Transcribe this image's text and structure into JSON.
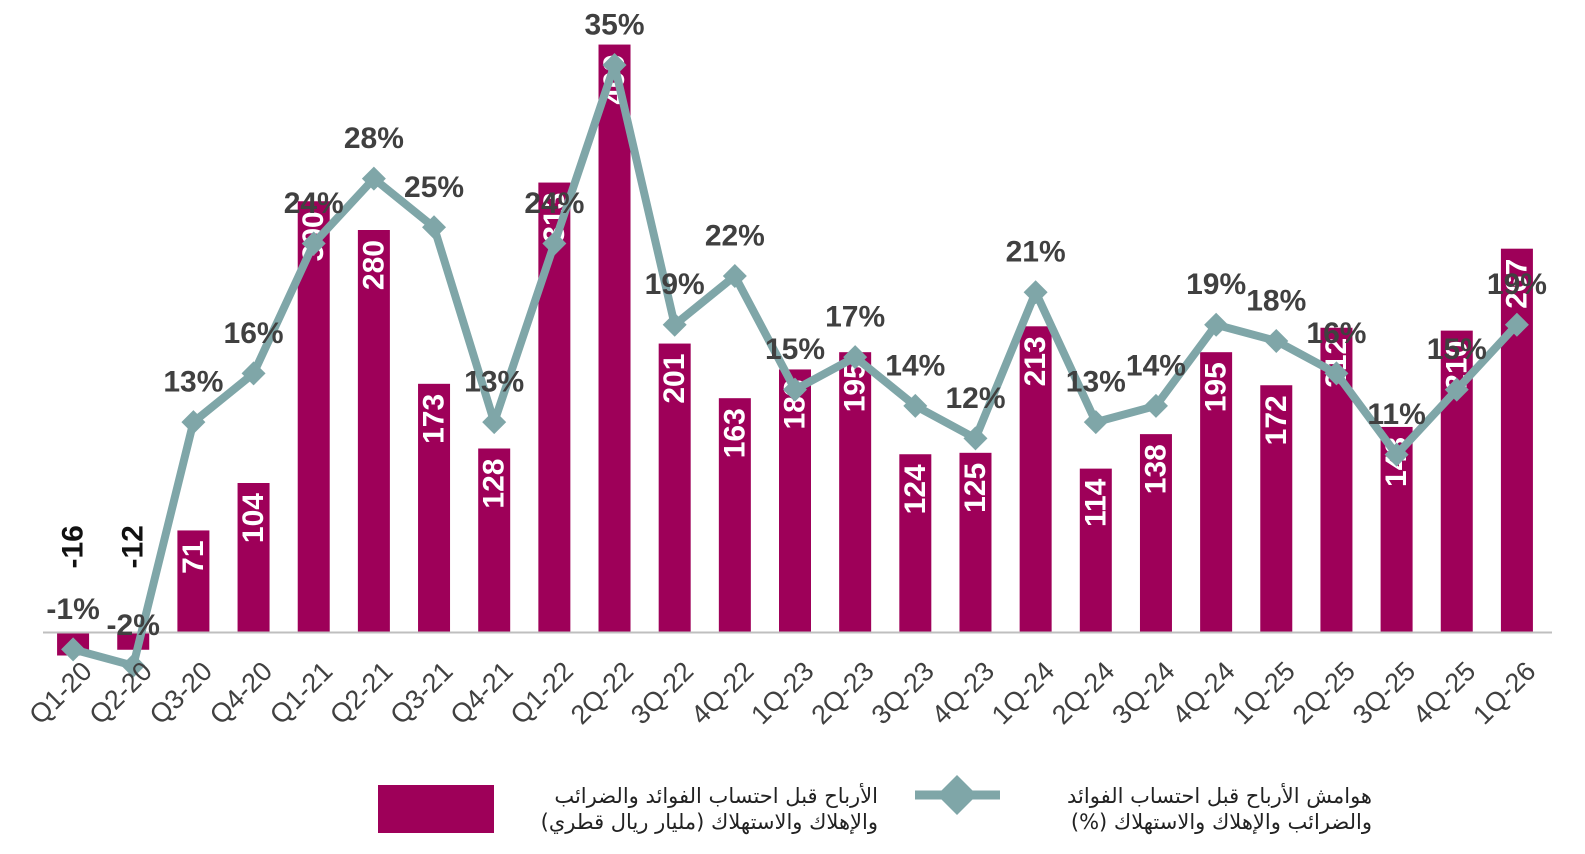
{
  "chart_data": {
    "type": "bar-line",
    "categories": [
      "Q1-20",
      "Q2-20",
      "Q3-20",
      "Q4-20",
      "Q1-21",
      "Q2-21",
      "Q3-21",
      "Q4-21",
      "Q1-22",
      "2Q-22",
      "3Q-22",
      "4Q-22",
      "1Q-23",
      "2Q-23",
      "3Q-23",
      "4Q-23",
      "1Q-24",
      "2Q-24",
      "3Q-24",
      "4Q-24",
      "1Q-25",
      "2Q-25",
      "3Q-25",
      "4Q-25",
      "1Q-26"
    ],
    "series": [
      {
        "name": "الأرباح قبل احتساب الفوائد والضرائب والإهلاك والاستهلاك (مليار ريال قطري)",
        "type": "bar",
        "color": "#9e0059",
        "values": [
          -16,
          -12,
          71,
          104,
          300,
          280,
          173,
          128,
          313,
          409,
          201,
          163,
          183,
          195,
          124,
          125,
          213,
          114,
          138,
          195,
          172,
          212,
          143,
          210,
          267
        ]
      },
      {
        "name": "هوامش الأرباح قبل احتساب الفوائد والضرائب والإهلاك والاستهلاك (%)",
        "type": "line",
        "axis": "y2",
        "color": "#7fa6a8",
        "values": [
          -1,
          -2,
          13,
          16,
          24,
          28,
          25,
          13,
          24,
          35,
          19,
          22,
          15,
          17,
          14,
          12,
          21,
          13,
          14,
          19,
          18,
          16,
          11,
          15,
          19
        ],
        "value_labels": [
          "-1%",
          "-2%",
          "13%",
          "16%",
          "24%",
          "28%",
          "25%",
          "13%",
          "24%",
          "35%",
          "19%",
          "22%",
          "15%",
          "17%",
          "14%",
          "12%",
          "21%",
          "13%",
          "14%",
          "19%",
          "18%",
          "16%",
          "11%",
          "15%",
          "19%"
        ]
      }
    ],
    "ylim": [
      -40,
      440
    ],
    "y2lim": [
      -3.5,
      39
    ]
  }
}
